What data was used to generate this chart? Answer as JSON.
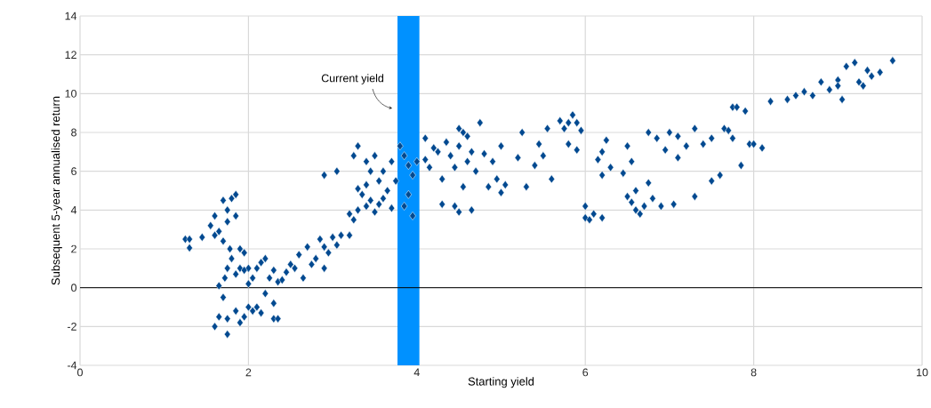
{
  "chart_data": {
    "type": "scatter",
    "xlabel": "Starting yield",
    "ylabel": "Subsequent 5-year annualised return",
    "xlim": [
      0,
      10
    ],
    "ylim": [
      -4,
      14
    ],
    "xticks": [
      0,
      2,
      4,
      6,
      8,
      10
    ],
    "yticks": [
      -4,
      -2,
      0,
      2,
      4,
      6,
      8,
      10,
      12,
      14
    ],
    "grid": true,
    "marker": "diamond",
    "legend": false,
    "bands": [
      {
        "axis": "x",
        "from": 3.77,
        "to": 4.03,
        "color": "#0091ff",
        "label": "Current yield"
      }
    ],
    "ref_lines": [
      {
        "axis": "y",
        "value": 0,
        "color": "#000000"
      }
    ],
    "series": [
      {
        "color": "#004990",
        "x": [
          1.25,
          1.3,
          1.3,
          1.45,
          1.55,
          1.6,
          1.6,
          1.65,
          1.7,
          1.75,
          1.8,
          1.85,
          1.85,
          1.75,
          1.7,
          1.78,
          1.8,
          1.75,
          1.72,
          1.65,
          1.7,
          1.65,
          1.6,
          1.75,
          1.75,
          1.85,
          1.9,
          1.95,
          2.0,
          2.05,
          2.1,
          2.15,
          2.2,
          2.3,
          2.3,
          2.35,
          2.0,
          2.05,
          2.1,
          2.15,
          2.25,
          2.3,
          2.35,
          1.85,
          1.9,
          1.95,
          2.0,
          1.9,
          1.95,
          2.2,
          2.4,
          2.45,
          2.5,
          2.55,
          2.6,
          2.65,
          2.7,
          2.75,
          2.8,
          2.85,
          2.9,
          2.9,
          2.95,
          3.0,
          3.05,
          3.1,
          3.2,
          2.9,
          3.05,
          3.2,
          3.25,
          3.3,
          3.3,
          3.35,
          3.4,
          3.4,
          3.45,
          3.5,
          3.55,
          3.25,
          3.3,
          3.4,
          3.45,
          3.5,
          3.55,
          3.6,
          3.6,
          3.65,
          3.7,
          3.7,
          3.75,
          3.8,
          3.85,
          3.9,
          3.95,
          3.85,
          3.9,
          3.95,
          4.0,
          4.1,
          4.1,
          4.15,
          4.2,
          4.25,
          4.3,
          4.3,
          4.35,
          4.4,
          4.45,
          4.45,
          4.5,
          4.5,
          4.55,
          4.6,
          4.6,
          4.65,
          4.65,
          4.7,
          4.55,
          4.75,
          4.8,
          4.85,
          4.9,
          4.5,
          4.95,
          5.0,
          5.0,
          5.05,
          5.2,
          5.25,
          5.3,
          5.4,
          5.45,
          5.5,
          5.55,
          5.6,
          5.7,
          5.75,
          5.8,
          5.85,
          5.9,
          5.95,
          5.9,
          5.8,
          6.0,
          6.0,
          6.05,
          6.1,
          6.2,
          6.2,
          6.3,
          6.25,
          6.2,
          6.15,
          6.45,
          6.5,
          6.55,
          6.5,
          6.55,
          6.6,
          6.6,
          6.65,
          6.7,
          6.75,
          6.75,
          6.8,
          6.85,
          6.9,
          6.95,
          7.0,
          7.05,
          7.1,
          7.1,
          7.2,
          7.3,
          7.3,
          7.4,
          7.5,
          7.5,
          7.6,
          7.65,
          7.7,
          7.75,
          7.75,
          7.8,
          7.85,
          7.9,
          7.95,
          8.1,
          8.0,
          8.2,
          8.4,
          8.5,
          8.6,
          8.7,
          8.8,
          8.9,
          9.0,
          9.05,
          9.1,
          9.2,
          9.25,
          9.3,
          9.35,
          9.4,
          9.5,
          9.65,
          9.0
        ],
        "values": [
          2.5,
          2.5,
          2.05,
          2.6,
          3.2,
          3.7,
          2.7,
          2.9,
          4.5,
          4.0,
          4.6,
          4.8,
          3.7,
          3.4,
          2.4,
          2.0,
          1.5,
          1.0,
          0.5,
          0.1,
          -0.5,
          -1.5,
          -2.0,
          -2.4,
          -1.6,
          -1.2,
          -1.8,
          -1.5,
          -1.0,
          -1.2,
          -1.0,
          -1.3,
          -0.3,
          -0.8,
          -1.6,
          -1.6,
          1.0,
          0.5,
          1.0,
          1.3,
          0.5,
          0.9,
          0.3,
          0.7,
          1.0,
          0.9,
          0.2,
          2.0,
          1.8,
          1.5,
          0.4,
          0.8,
          1.2,
          1.0,
          1.7,
          0.5,
          2.1,
          1.2,
          1.5,
          2.5,
          1.0,
          2.1,
          1.8,
          2.6,
          2.2,
          2.7,
          2.7,
          5.8,
          6.0,
          3.8,
          3.5,
          4.0,
          5.1,
          4.8,
          5.3,
          4.2,
          4.5,
          3.9,
          4.3,
          6.8,
          7.3,
          6.5,
          6.0,
          6.8,
          5.5,
          6.0,
          4.6,
          5.0,
          6.5,
          4.1,
          5.5,
          7.3,
          6.8,
          6.3,
          5.8,
          4.2,
          4.8,
          3.7,
          6.5,
          7.7,
          6.6,
          6.2,
          7.2,
          7.0,
          5.6,
          4.3,
          7.5,
          6.8,
          6.2,
          4.2,
          8.2,
          7.3,
          8.0,
          6.5,
          7.8,
          4.0,
          7.0,
          6.0,
          5.2,
          8.5,
          6.9,
          5.2,
          6.5,
          3.9,
          5.6,
          7.3,
          4.9,
          5.3,
          6.7,
          8.0,
          5.2,
          6.3,
          7.4,
          6.8,
          8.2,
          5.6,
          8.6,
          8.2,
          8.5,
          8.9,
          8.5,
          8.1,
          7.1,
          7.4,
          4.2,
          3.6,
          3.5,
          3.8,
          3.6,
          5.8,
          6.2,
          7.6,
          7.0,
          6.6,
          5.9,
          7.3,
          6.5,
          4.7,
          4.4,
          5.0,
          4.0,
          3.8,
          4.2,
          5.4,
          8.0,
          4.6,
          7.7,
          4.2,
          7.1,
          8.0,
          4.3,
          6.7,
          7.8,
          7.3,
          8.2,
          4.7,
          7.4,
          5.5,
          7.7,
          5.8,
          8.2,
          8.1,
          7.7,
          9.3,
          9.3,
          6.3,
          9.1,
          7.4,
          7.2,
          7.4,
          9.6,
          9.7,
          9.9,
          10.1,
          9.9,
          10.6,
          10.2,
          10.7,
          9.7,
          11.4,
          11.6,
          10.6,
          10.4,
          11.2,
          10.9,
          11.1,
          11.7,
          10.4
        ]
      }
    ]
  }
}
